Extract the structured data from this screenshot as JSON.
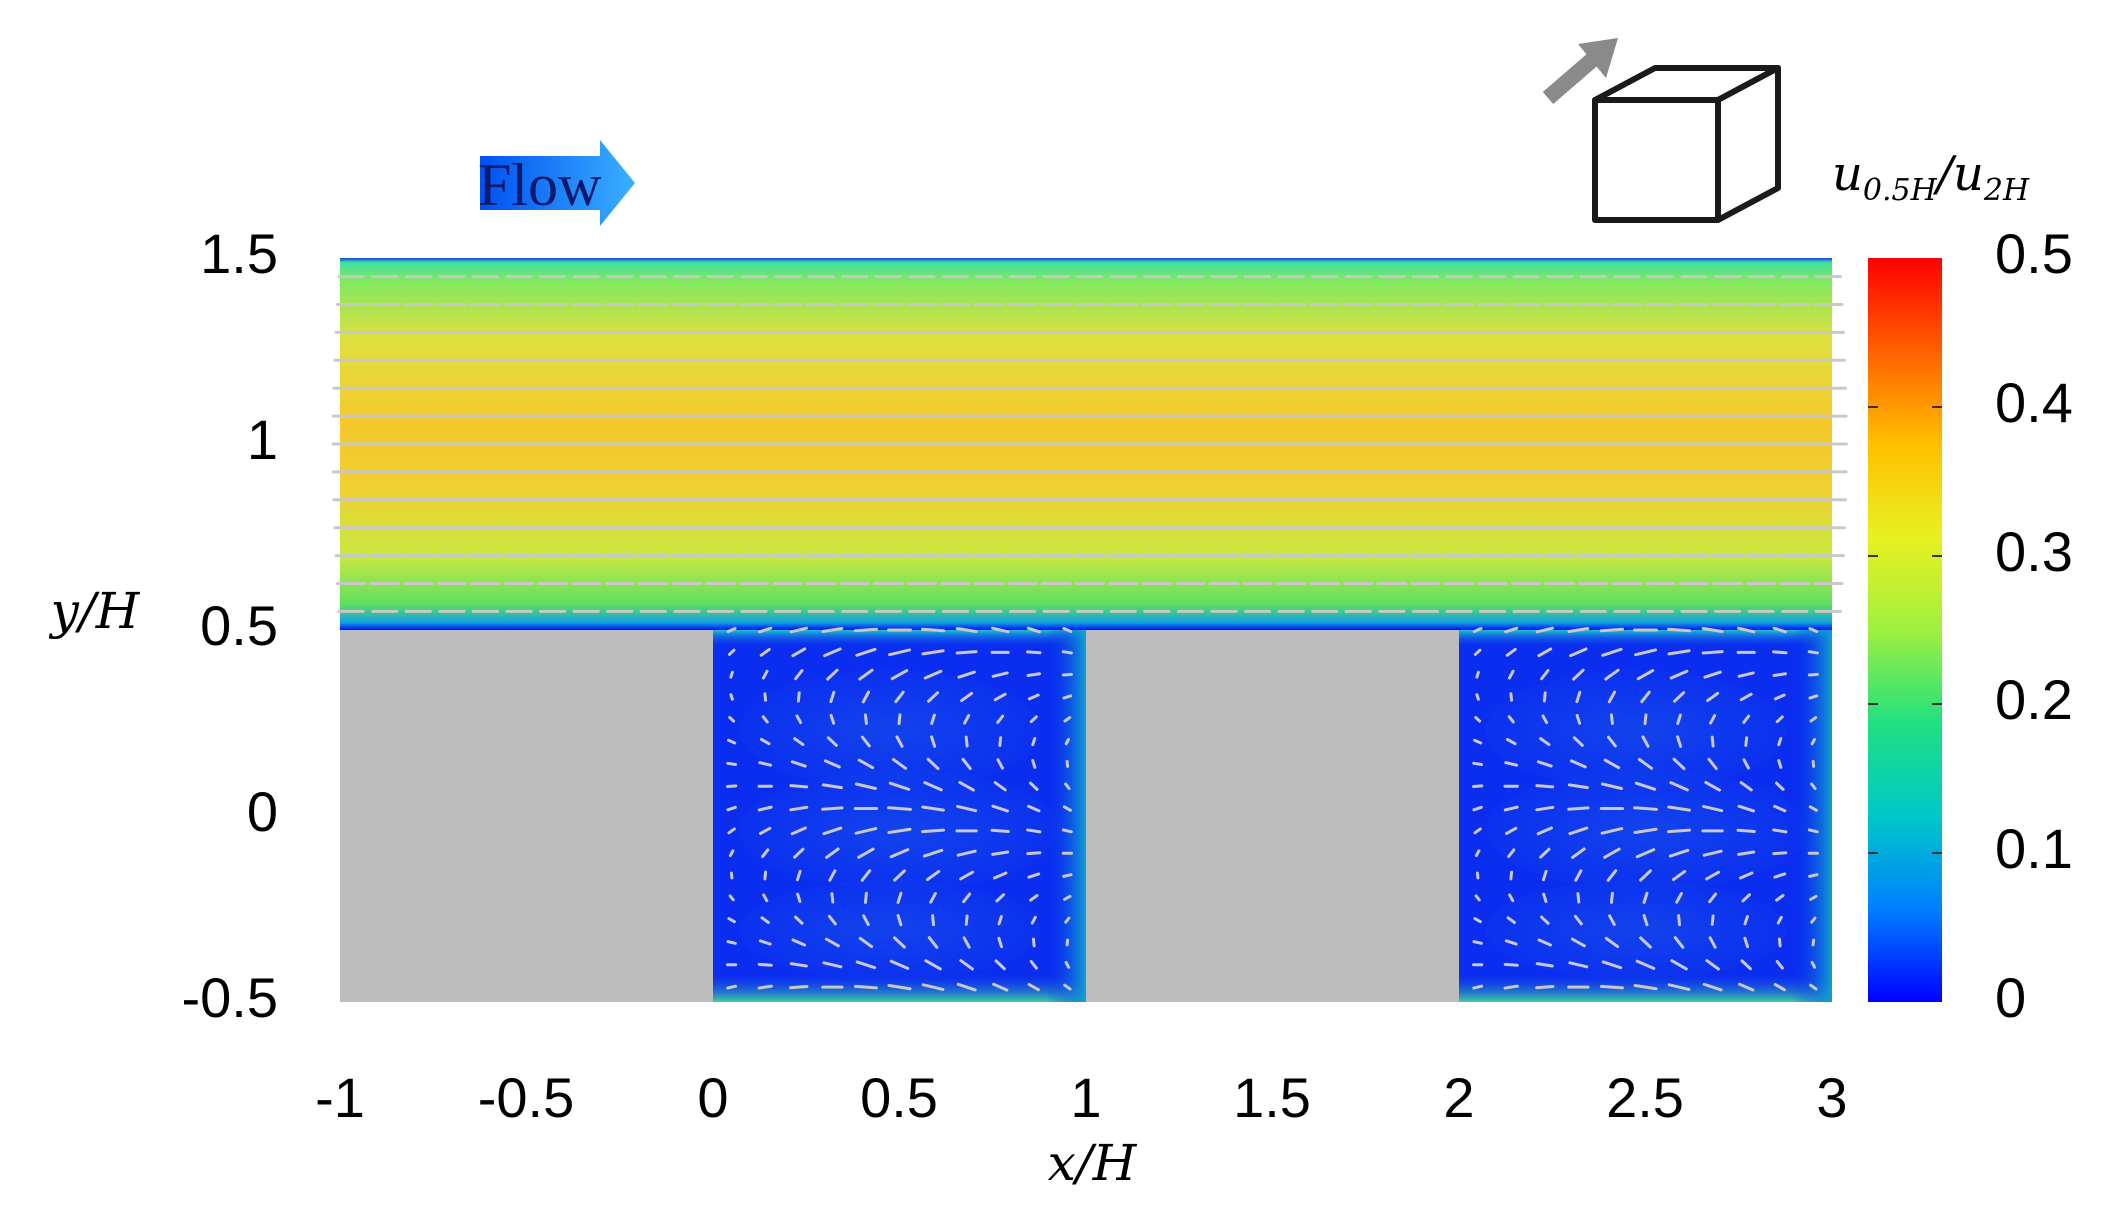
{
  "chart_data": {
    "type": "heatmap",
    "xlabel": "x/H",
    "ylabel": "y/H",
    "xlim": [
      -1,
      3
    ],
    "ylim": [
      -0.5,
      1.5
    ],
    "x_ticks": [
      "-1",
      "-0.5",
      "0",
      "0.5",
      "1",
      "1.5",
      "2",
      "2.5",
      "3"
    ],
    "y_ticks": [
      "1.5",
      "1",
      "0.5",
      "0",
      "-0.5"
    ],
    "colorbar": {
      "label": "u_{0.5H}/u_{2H}",
      "label_main": "u",
      "label_num_sub": "0.5H",
      "label_sep": "/u",
      "label_den_sub": "2H",
      "range": [
        0,
        0.5
      ],
      "ticks": [
        "0.5",
        "0.4",
        "0.3",
        "0.2",
        "0.1",
        "0"
      ],
      "colormap": "jet"
    },
    "annotation": "Flow",
    "blocks": [
      {
        "x": [
          -1,
          0
        ],
        "y": [
          -0.5,
          0.5
        ],
        "color": "#bdbdbd"
      },
      {
        "x": [
          1,
          2
        ],
        "y": [
          -0.5,
          0.5
        ],
        "color": "#bdbdbd"
      }
    ],
    "cavities": [
      {
        "x": [
          0,
          1
        ],
        "y": [
          -0.5,
          0.5
        ]
      },
      {
        "x": [
          2,
          3
        ],
        "y": [
          -0.5,
          0.5
        ]
      }
    ],
    "field_profile": {
      "y": [
        0.5,
        0.52,
        0.58,
        0.7,
        0.85,
        1.0,
        1.15,
        1.3,
        1.45,
        1.5
      ],
      "value": [
        0.02,
        0.2,
        0.26,
        0.31,
        0.35,
        0.37,
        0.35,
        0.3,
        0.22,
        0.02
      ]
    },
    "vector_color": "#c8c8c8"
  }
}
